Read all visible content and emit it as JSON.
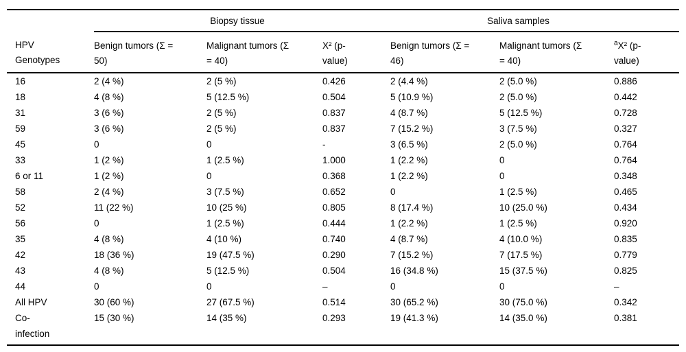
{
  "colors": {
    "text": "#000000",
    "background": "#ffffff",
    "rule": "#000000"
  },
  "table": {
    "group_headers": [
      {
        "label": "",
        "span": 1
      },
      {
        "label": "Biopsy tissue",
        "span": 3
      },
      {
        "label": "Saliva samples",
        "span": 3
      }
    ],
    "columns": [
      {
        "sup": "",
        "line1": "HPV",
        "line2": "Genotypes"
      },
      {
        "sup": "",
        "line1": "Benign tumors (Σ =",
        "line2": "50)"
      },
      {
        "sup": "",
        "line1": "Malignant tumors (Σ",
        "line2": "= 40)"
      },
      {
        "sup": "",
        "line1": "X² (p-",
        "line2": "value)"
      },
      {
        "sup": "",
        "line1": "Benign tumors (Σ =",
        "line2": "46)"
      },
      {
        "sup": "",
        "line1": "Malignant tumors (Σ",
        "line2": "= 40)"
      },
      {
        "sup": "a",
        "line1": "X² (p-",
        "line2": "value)"
      }
    ],
    "rows": [
      [
        "16",
        "2 (4 %)",
        "2 (5 %)",
        "0.426",
        "2 (4.4 %)",
        "2 (5.0 %)",
        "0.886"
      ],
      [
        "18",
        "4 (8 %)",
        "5 (12.5 %)",
        "0.504",
        "5 (10.9 %)",
        "2 (5.0 %)",
        "0.442"
      ],
      [
        "31",
        "3 (6 %)",
        "2 (5 %)",
        "0.837",
        "4 (8.7 %)",
        "5 (12.5 %)",
        "0.728"
      ],
      [
        "59",
        "3 (6 %)",
        "2 (5 %)",
        "0.837",
        "7 (15.2 %)",
        "3 (7.5 %)",
        "0.327"
      ],
      [
        "45",
        "0",
        "0",
        "-",
        "3 (6.5 %)",
        "2 (5.0 %)",
        "0.764"
      ],
      [
        "33",
        "1 (2 %)",
        "1 (2.5 %)",
        "1.000",
        "1 (2.2 %)",
        "0",
        "0.764"
      ],
      [
        "6 or 11",
        "1 (2 %)",
        "0",
        "0.368",
        "1 (2.2 %)",
        "0",
        "0.348"
      ],
      [
        "58",
        "2 (4 %)",
        "3 (7.5 %)",
        "0.652",
        "0",
        "1 (2.5 %)",
        "0.465"
      ],
      [
        "52",
        "11 (22 %)",
        "10 (25 %)",
        "0.805",
        "8 (17.4 %)",
        "10 (25.0 %)",
        "0.434"
      ],
      [
        "56",
        "0",
        "1 (2.5 %)",
        "0.444",
        "1 (2.2 %)",
        "1 (2.5 %)",
        "0.920"
      ],
      [
        "35",
        "4 (8 %)",
        "4 (10 %)",
        "0.740",
        "4 (8.7 %)",
        "4 (10.0 %)",
        "0.835"
      ],
      [
        "42",
        "18 (36 %)",
        "19 (47.5 %)",
        "0.290",
        "7 (15.2 %)",
        "7 (17.5 %)",
        "0.779"
      ],
      [
        "43",
        "4 (8 %)",
        "5 (12.5 %)",
        "0.504",
        "16 (34.8 %)",
        "15 (37.5 %)",
        "0.825"
      ],
      [
        "44",
        "0",
        "0",
        "–",
        "0",
        "0",
        "–"
      ],
      [
        "All HPV",
        "30 (60 %)",
        "27 (67.5 %)",
        "0.514",
        "30 (65.2 %)",
        "30 (75.0 %)",
        "0.342"
      ],
      [
        "Co-\ninfection",
        "15 (30 %)",
        "14 (35 %)",
        "0.293",
        "19 (41.3 %)",
        "14 (35.0 %)",
        "0.381"
      ]
    ]
  }
}
